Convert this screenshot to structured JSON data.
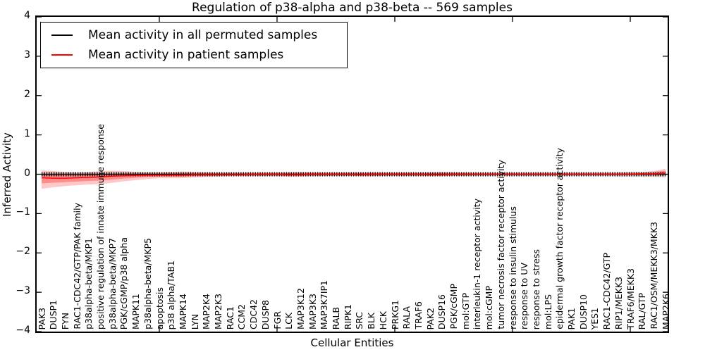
{
  "chart_data": {
    "type": "line",
    "title": "Regulation of p38-alpha and p38-beta -- 569 samples",
    "xlabel": "Cellular Entities",
    "ylabel": "Inferred Activity",
    "ylim": [
      -4,
      4
    ],
    "yticks": [
      4,
      3,
      2,
      1,
      0,
      -1,
      -2,
      -3,
      -4
    ],
    "x_tick_rotation": 90,
    "grid": false,
    "legend_position": "upper left",
    "colors": {
      "permuted": "#000000",
      "patient": "#ff0000",
      "patient_band": "#ff0000",
      "permuted_band": "#999999"
    },
    "categories": [
      "PAK3",
      "DUSP1",
      "FYN",
      "RAC1-CDC42/GTP/PAK family",
      "p38alpha-beta/MKP1",
      "positive regulation of innate immune response",
      "p38alpha-beta/MKP7",
      "PGK/cGMP/p38 alpha",
      "MAPK11",
      "p38alpha-beta/MKP5",
      "apoptosis",
      "p38 alpha/TAB1",
      "MAPK14",
      "LYN",
      "MAP2K4",
      "MAP2K3",
      "RAC1",
      "CCM2",
      "CDC42",
      "DUSP8",
      "FGR",
      "LCK",
      "MAP3K12",
      "MAP3K3",
      "MAP3K7IP1",
      "RALB",
      "RIPK1",
      "SRC",
      "BLK",
      "HCK",
      "PRKG1",
      "RALA",
      "TRAF6",
      "PAK2",
      "DUSP16",
      "PGK/cGMP",
      "mol:GTP",
      "interleukin-1 receptor activity",
      "mol:cGMP",
      "tumor necrosis factor receptor activity",
      "response to insulin stimulus",
      "response to UV",
      "response to stress",
      "mol:LPS",
      "epidermal growth factor receptor activity",
      "PAK1",
      "DUSP10",
      "YES1",
      "RAC1-CDC42/GTP",
      "RIP1/MEKK3",
      "TRAF6/MEKK3",
      "RAL/GTP",
      "RAC1/OSM/MEKK3/MKK3",
      "MAP2K6"
    ],
    "series": [
      {
        "name": "Mean activity in all permuted samples",
        "color": "#000000",
        "values": [
          0,
          0,
          0,
          0,
          0,
          0,
          0,
          0,
          0,
          0,
          0,
          0,
          0,
          0,
          0,
          0,
          0,
          0,
          0,
          0,
          0,
          0,
          0,
          0,
          0,
          0,
          0,
          0,
          0,
          0,
          0,
          0,
          0,
          0,
          0,
          0,
          0,
          0,
          0,
          0,
          0,
          0,
          0,
          0,
          0,
          0,
          0,
          0,
          0,
          0,
          0,
          0,
          0,
          0
        ],
        "band_upper": [
          0.05,
          0.05,
          0.04,
          0.04,
          0.04,
          0.04,
          0.04,
          0.04,
          0.04,
          0.04,
          0.04,
          0.04,
          0.04,
          0.04,
          0.04,
          0.04,
          0.04,
          0.04,
          0.04,
          0.04,
          0.04,
          0.04,
          0.04,
          0.04,
          0.04,
          0.04,
          0.04,
          0.04,
          0.04,
          0.04,
          0.04,
          0.04,
          0.04,
          0.04,
          0.04,
          0.04,
          0.04,
          0.04,
          0.05,
          0.05,
          0.05,
          0.05,
          0.05,
          0.05,
          0.05,
          0.05,
          0.05,
          0.05,
          0.05,
          0.06,
          0.06,
          0.06,
          0.07,
          0.09
        ],
        "band_lower": [
          -0.05,
          -0.05,
          -0.04,
          -0.04,
          -0.04,
          -0.04,
          -0.04,
          -0.04,
          -0.04,
          -0.04,
          -0.04,
          -0.04,
          -0.04,
          -0.04,
          -0.04,
          -0.04,
          -0.04,
          -0.04,
          -0.04,
          -0.04,
          -0.04,
          -0.04,
          -0.04,
          -0.04,
          -0.04,
          -0.04,
          -0.04,
          -0.04,
          -0.04,
          -0.04,
          -0.04,
          -0.04,
          -0.04,
          -0.04,
          -0.04,
          -0.04,
          -0.04,
          -0.04,
          -0.05,
          -0.05,
          -0.05,
          -0.05,
          -0.05,
          -0.05,
          -0.05,
          -0.05,
          -0.05,
          -0.05,
          -0.05,
          -0.06,
          -0.06,
          -0.06,
          -0.07,
          -0.09
        ]
      },
      {
        "name": "Mean activity in patient samples",
        "color": "#ff0000",
        "values": [
          -0.09,
          -0.1,
          -0.1,
          -0.09,
          -0.08,
          -0.07,
          -0.05,
          -0.04,
          -0.03,
          -0.02,
          -0.02,
          -0.02,
          -0.02,
          -0.01,
          -0.01,
          -0.01,
          -0.01,
          -0.01,
          0,
          0,
          0,
          -0.01,
          -0.01,
          0,
          0,
          0,
          0,
          -0.01,
          0,
          0,
          0,
          0,
          0,
          -0.01,
          -0.01,
          0,
          0,
          0,
          0,
          0,
          0,
          0,
          0,
          0,
          0,
          0,
          0,
          0,
          0,
          0,
          0,
          0.01,
          0.01,
          0.03
        ],
        "band_upper": [
          0.1,
          0.08,
          0.06,
          0.05,
          0.06,
          0.08,
          0.09,
          0.08,
          0.06,
          0.05,
          0.05,
          0.06,
          0.07,
          0.06,
          0.05,
          0.04,
          0.04,
          0.04,
          0.04,
          0.04,
          0.04,
          0.05,
          0.06,
          0.05,
          0.04,
          0.04,
          0.04,
          0.05,
          0.05,
          0.04,
          0.04,
          0.04,
          0.04,
          0.05,
          0.06,
          0.05,
          0.04,
          0.03,
          0.03,
          0.03,
          0.03,
          0.03,
          0.03,
          0.03,
          0.03,
          0.03,
          0.03,
          0.03,
          0.03,
          0.03,
          0.04,
          0.05,
          0.08,
          0.14
        ],
        "band_lower": [
          -0.37,
          -0.33,
          -0.3,
          -0.28,
          -0.26,
          -0.25,
          -0.22,
          -0.18,
          -0.15,
          -0.12,
          -0.1,
          -0.1,
          -0.1,
          -0.08,
          -0.07,
          -0.06,
          -0.05,
          -0.05,
          -0.05,
          -0.05,
          -0.05,
          -0.06,
          -0.06,
          -0.05,
          -0.05,
          -0.04,
          -0.04,
          -0.05,
          -0.05,
          -0.04,
          -0.04,
          -0.04,
          -0.04,
          -0.05,
          -0.05,
          -0.04,
          -0.04,
          -0.03,
          -0.03,
          -0.03,
          -0.03,
          -0.03,
          -0.03,
          -0.03,
          -0.03,
          -0.03,
          -0.03,
          -0.03,
          -0.03,
          -0.03,
          -0.03,
          -0.04,
          -0.04,
          -0.05
        ]
      }
    ]
  }
}
